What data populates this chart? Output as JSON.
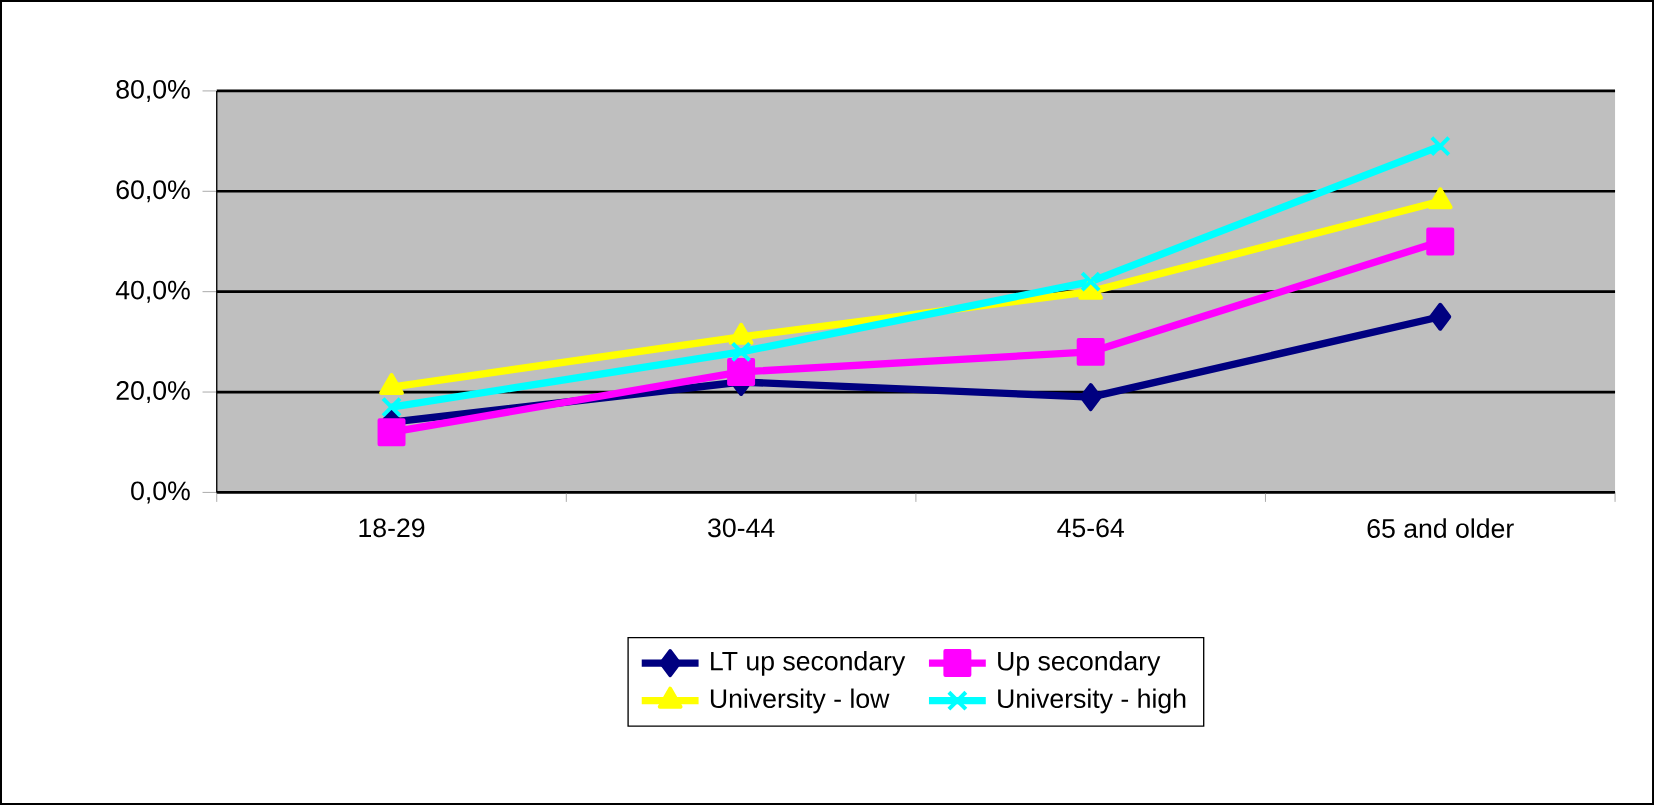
{
  "chart_data": {
    "type": "line",
    "categories": [
      "18-29",
      "30-44",
      "45-64",
      "65 and older"
    ],
    "series": [
      {
        "name": "LT up secondary",
        "color": "#000080",
        "marker": "diamond",
        "values": [
          14,
          22,
          19,
          35
        ]
      },
      {
        "name": "Up secondary",
        "color": "#ff00ff",
        "marker": "square",
        "values": [
          12,
          24,
          28,
          50
        ]
      },
      {
        "name": "University - low",
        "color": "#ffff00",
        "marker": "triangle",
        "values": [
          21,
          31,
          40,
          58
        ]
      },
      {
        "name": "University - high",
        "color": "#00ffff",
        "marker": "cross",
        "values": [
          17,
          28,
          42,
          69
        ]
      }
    ],
    "ylim": [
      0,
      80
    ],
    "yticks": [
      {
        "value": 0,
        "label": "0,0%"
      },
      {
        "value": 20,
        "label": "20,0%"
      },
      {
        "value": 40,
        "label": "40,0%"
      },
      {
        "value": 60,
        "label": "60,0%"
      },
      {
        "value": 80,
        "label": "80,0%"
      }
    ],
    "grid": "y",
    "legend": "bottom",
    "line_style": "solid"
  }
}
